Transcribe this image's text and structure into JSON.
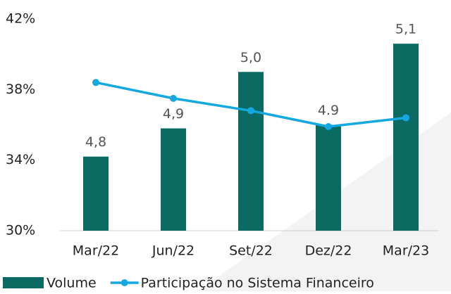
{
  "chart_data": {
    "type": "bar",
    "categories": [
      "Mar/22",
      "Jun/22",
      "Set/22",
      "Dez/22",
      "Mar/23"
    ],
    "series": [
      {
        "name": "Volume",
        "type": "bar",
        "axis": "y2",
        "color": "#0b6b63",
        "values": [
          4.8,
          4.88,
          5.04,
          4.89,
          5.12
        ],
        "value_labels": [
          "4,8",
          "4,9",
          "5,0",
          "4.9",
          "5,1"
        ]
      },
      {
        "name": "Participação no Sistema Financeiro",
        "type": "line",
        "color": "#13a8e0",
        "values": [
          38.4,
          37.5,
          36.8,
          35.9,
          36.4
        ]
      }
    ],
    "ylim": [
      30,
      42
    ],
    "yticks": [
      {
        "value": 30,
        "label": "30%"
      },
      {
        "value": 34,
        "label": "34%"
      },
      {
        "value": 38,
        "label": "38%"
      },
      {
        "value": 42,
        "label": "42%"
      }
    ],
    "y2lim": [
      4.59,
      5.19
    ],
    "legend": "bottom"
  }
}
